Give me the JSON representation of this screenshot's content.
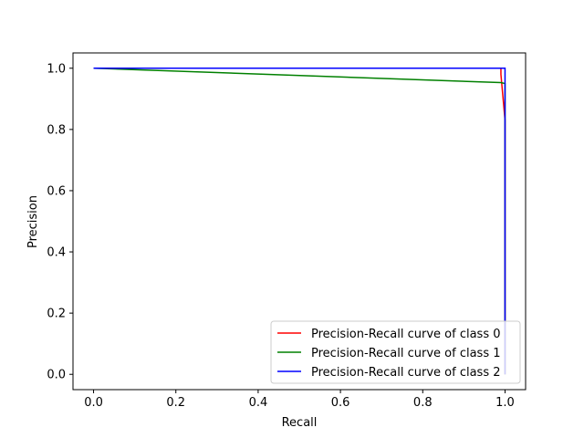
{
  "chart_data": {
    "type": "line",
    "xlabel": "Recall",
    "ylabel": "Precision",
    "xlim": [
      -0.05,
      1.05
    ],
    "ylim": [
      -0.05,
      1.05
    ],
    "xticks": [
      0.0,
      0.2,
      0.4,
      0.6,
      0.8,
      1.0
    ],
    "xtick_labels": [
      "0.0",
      "0.2",
      "0.4",
      "0.6",
      "0.8",
      "1.0"
    ],
    "yticks": [
      0.0,
      0.2,
      0.4,
      0.6,
      0.8,
      1.0
    ],
    "ytick_labels": [
      "0.0",
      "0.2",
      "0.4",
      "0.6",
      "0.8",
      "1.0"
    ],
    "grid": false,
    "legend_position": "bottom-right",
    "series": [
      {
        "name": "Precision-Recall curve of class 0",
        "color": "#ff0000",
        "x": [
          0.0,
          0.99,
          0.99,
          1.0,
          1.0
        ],
        "y": [
          1.0,
          1.0,
          0.98,
          0.83,
          0.0
        ]
      },
      {
        "name": "Precision-Recall curve of class 1",
        "color": "#008000",
        "x": [
          0.0,
          0.99,
          1.0,
          1.0
        ],
        "y": [
          1.0,
          0.953,
          0.95,
          0.0
        ]
      },
      {
        "name": "Precision-Recall curve of class 2",
        "color": "#0000ff",
        "x": [
          0.0,
          1.0,
          1.0,
          1.0
        ],
        "y": [
          1.0,
          1.0,
          0.8,
          0.0
        ]
      }
    ]
  }
}
